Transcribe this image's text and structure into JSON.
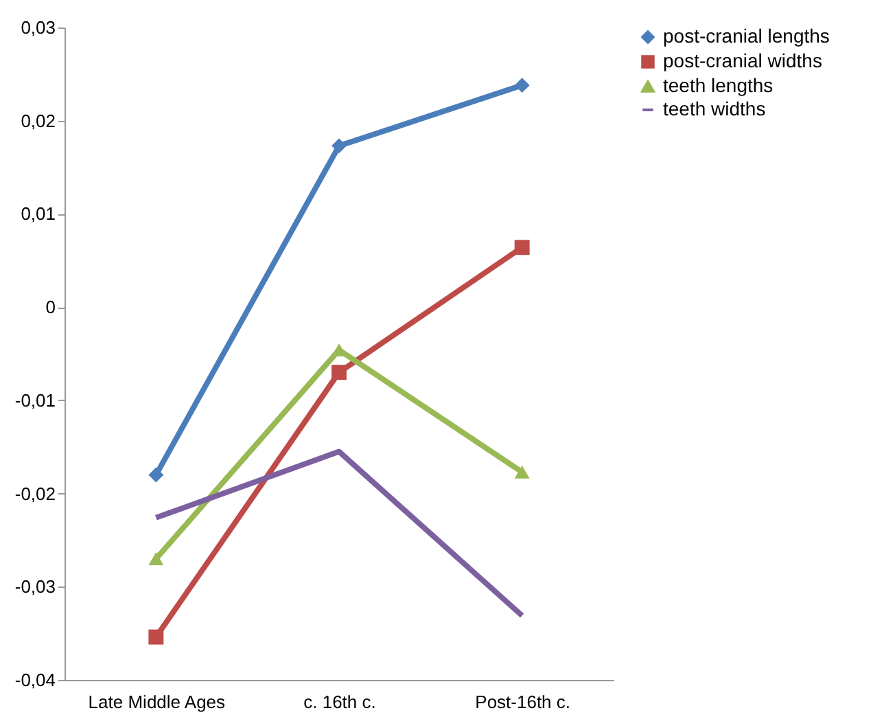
{
  "chart_data": {
    "type": "line",
    "categories": [
      "Late Middle Ages",
      "c. 16th c.",
      "Post-16th c."
    ],
    "series": [
      {
        "name": "post-cranial lengths",
        "color": "#4a7ebb",
        "marker": "diamond",
        "values": [
          -0.018,
          0.0173,
          0.0238
        ]
      },
      {
        "name": "post-cranial widths",
        "color": "#be4b48",
        "marker": "square",
        "values": [
          -0.0354,
          -0.007,
          0.0064
        ]
      },
      {
        "name": "teeth lengths",
        "color": "#98b954",
        "marker": "triangle",
        "values": [
          -0.027,
          -0.0046,
          -0.0177
        ]
      },
      {
        "name": "teeth widths",
        "color": "#7d60a0",
        "marker": "none",
        "values": [
          -0.0226,
          -0.0155,
          -0.0331
        ]
      }
    ],
    "ylim": [
      -0.04,
      0.03
    ],
    "yticks": [
      {
        "value": -0.04,
        "label": "-0,04"
      },
      {
        "value": -0.03,
        "label": "-0,03"
      },
      {
        "value": -0.02,
        "label": "-0,02"
      },
      {
        "value": -0.01,
        "label": "-0,01"
      },
      {
        "value": 0,
        "label": "0"
      },
      {
        "value": 0.01,
        "label": "0,01"
      },
      {
        "value": 0.02,
        "label": "0,02"
      },
      {
        "value": 0.03,
        "label": "0,03"
      }
    ],
    "grid": false,
    "legend": "right",
    "line_style": "solid"
  }
}
